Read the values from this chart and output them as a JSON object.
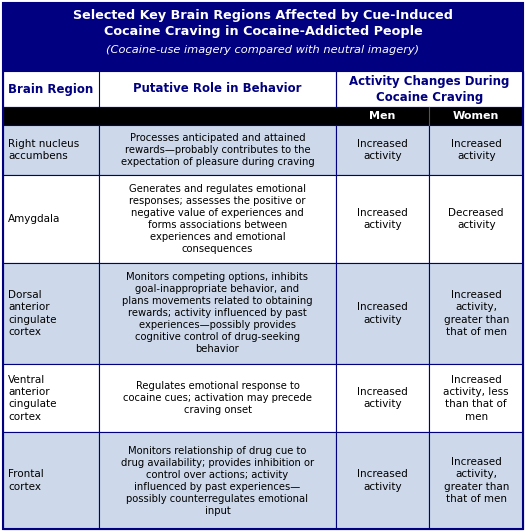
{
  "title_line1": "Selected Key Brain Regions Affected by Cue-Induced",
  "title_line2": "Cocaine Craving in Cocaine-Addicted People",
  "title_line3": "(Cocaine-use imagery compared with neutral imagery)",
  "header_bg": "#000080",
  "header_text_color": "#ffffff",
  "col_header_text_color": "#000080",
  "subheader_bg": "#000000",
  "row_bg_odd": "#cdd9ea",
  "row_bg_even": "#ffffff",
  "border_color": "#000080",
  "fig_w": 5.26,
  "fig_h": 5.32,
  "dpi": 100,
  "rows": [
    {
      "brain_region": "Right nucleus\naccumbens",
      "role": "Processes anticipated and attained\nrewards—probably contributes to the\nexpectation of pleasure during craving",
      "men": "Increased\nactivity",
      "women": "Increased\nactivity"
    },
    {
      "brain_region": "Amygdala",
      "role": "Generates and regulates emotional\nresponses; assesses the positive or\nnegative value of experiences and\nforms associations between\nexperiences and emotional\nconsequences",
      "men": "Increased\nactivity",
      "women": "Decreased\nactivity"
    },
    {
      "brain_region": "Dorsal\nanterior\ncingulate\ncortex",
      "role": "Monitors competing options, inhibits\ngoal-inappropriate behavior, and\nplans movements related to obtaining\nrewards; activity influenced by past\nexperiences—possibly provides\ncognitive control of drug-seeking\nbehavior",
      "men": "Increased\nactivity",
      "women": "Increased\nactivity,\ngreater than\nthat of men"
    },
    {
      "brain_region": "Ventral\nanterior\ncingulate\ncortex",
      "role": "Regulates emotional response to\ncocaine cues; activation may precede\ncraving onset",
      "men": "Increased\nactivity",
      "women": "Increased\nactivity, less\nthan that of\nmen"
    },
    {
      "brain_region": "Frontal\ncortex",
      "role": "Monitors relationship of drug cue to\ndrug availability; provides inhibition or\ncontrol over actions; activity\ninfluenced by past experiences—\npossibly counterregulates emotional\ninput",
      "men": "Increased\nactivity",
      "women": "Increased\nactivity,\ngreater than\nthat of men"
    }
  ]
}
